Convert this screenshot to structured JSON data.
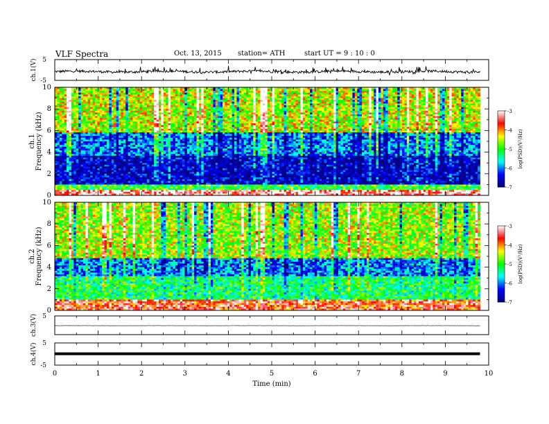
{
  "header": {
    "title": "VLF  Spectra",
    "date": "Oct. 13, 2015",
    "station": "station= ATH",
    "start": "start  UT  =   9  : 10 : 0"
  },
  "colors": {
    "colormap": [
      "#000080",
      "#0000ff",
      "#00ffff",
      "#00ff00",
      "#ffff00",
      "#ff0000",
      "#ffffff"
    ],
    "trace": "#000000",
    "frame": "#000000"
  },
  "chart_data": [
    {
      "type": "line",
      "panel": "ch1-waveform",
      "ylabel": "ch.1(V)",
      "ylim": [
        -5,
        5
      ],
      "yticks": [
        "5",
        "-5"
      ],
      "xlim": [
        0,
        10
      ],
      "series": [
        {
          "x": [
            0,
            9.8
          ],
          "level": -0.8,
          "noise": 0.6
        }
      ]
    },
    {
      "type": "heatmap",
      "panel": "ch1-spectrogram",
      "ylabel": [
        "ch.1",
        "Frequency  (kHz)"
      ],
      "ylim": [
        0,
        10
      ],
      "yticks": [
        "0",
        "2",
        "4",
        "6",
        "8",
        "10"
      ],
      "xlim": [
        0,
        10
      ],
      "data_x_end": 9.8,
      "colorbar": {
        "label": "log(PSD)(V²/Hz)",
        "ticks": [
          "-3",
          "-4",
          "-5",
          "-6",
          "-7"
        ],
        "range": [
          -7,
          -3
        ]
      },
      "profile": [
        {
          "f": [
            0,
            0.5
          ],
          "v": -3.2
        },
        {
          "f": [
            0.5,
            1.0
          ],
          "v": -5.0
        },
        {
          "f": [
            1.0,
            3.6
          ],
          "v": -6.6
        },
        {
          "f": [
            3.6,
            5.8
          ],
          "v": -6.0
        },
        {
          "f": [
            5.8,
            10
          ],
          "v": -4.5
        }
      ]
    },
    {
      "type": "heatmap",
      "panel": "ch2-spectrogram",
      "ylabel": [
        "ch.2",
        "Frequency  (kHz)"
      ],
      "ylim": [
        0,
        10
      ],
      "yticks": [
        "0",
        "2",
        "4",
        "6",
        "8",
        "10"
      ],
      "xlim": [
        0,
        10
      ],
      "data_x_end": 9.8,
      "colorbar": {
        "label": "log(PSD)(V²/Hz)",
        "ticks": [
          "-3",
          "-4",
          "-5",
          "-6",
          "-7"
        ],
        "range": [
          -7,
          -3
        ]
      },
      "profile": [
        {
          "f": [
            0,
            1.0
          ],
          "v": -3.6
        },
        {
          "f": [
            1.0,
            3.2
          ],
          "v": -5.2
        },
        {
          "f": [
            3.2,
            4.8
          ],
          "v": -6.0
        },
        {
          "f": [
            4.8,
            10
          ],
          "v": -4.6
        }
      ]
    },
    {
      "type": "line",
      "panel": "ch3-waveform",
      "ylabel": "ch.3(V)",
      "ylim": [
        -5,
        5
      ],
      "yticks": [
        "5"
      ],
      "xlim": [
        0,
        10
      ],
      "series": [
        {
          "x": [
            0,
            9.8
          ],
          "level": -0.2,
          "noise": 0.05
        }
      ]
    },
    {
      "type": "line",
      "panel": "ch4-waveform",
      "ylabel": "ch.4(V)",
      "ylim": [
        -5,
        5
      ],
      "yticks": [
        "5",
        "-5"
      ],
      "xlim": [
        0,
        10
      ],
      "xlabel": "Time  (min)",
      "xticks": [
        "0",
        "1",
        "2",
        "3",
        "4",
        "5",
        "6",
        "7",
        "8",
        "9",
        "10"
      ],
      "series": [
        {
          "x": [
            0,
            9.8
          ],
          "level": 0.1,
          "noise": 0.0
        }
      ]
    }
  ]
}
